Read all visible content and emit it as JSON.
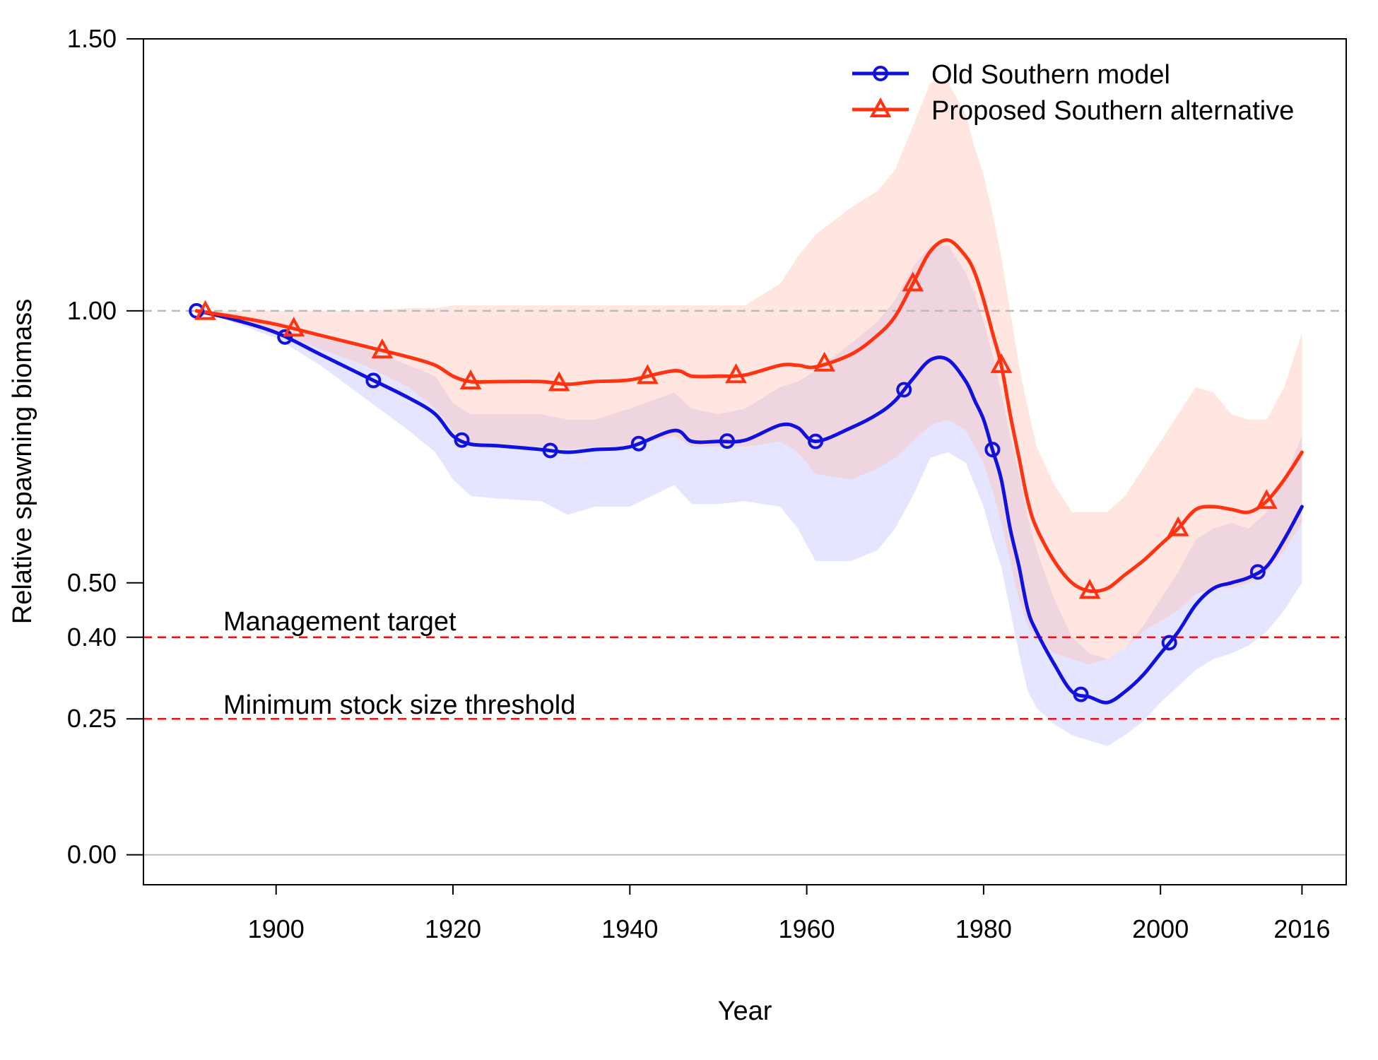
{
  "chart_data": {
    "type": "line",
    "title": "",
    "xlabel": "Year",
    "ylabel": "Relative spawning biomass",
    "xlim": [
      1885,
      2021
    ],
    "ylim": [
      -0.055,
      1.5
    ],
    "x_ticks": [
      1900,
      1920,
      1940,
      1960,
      1980,
      2000,
      2016
    ],
    "y_ticks": [
      {
        "value": 0.0,
        "label": "0.00"
      },
      {
        "value": 0.25,
        "label": "0.25"
      },
      {
        "value": 0.4,
        "label": "0.40"
      },
      {
        "value": 0.5,
        "label": "0.50"
      },
      {
        "value": 1.0,
        "label": "1.00"
      },
      {
        "value": 1.5,
        "label": "1.50"
      }
    ],
    "reference_lines": [
      {
        "name": "unfished",
        "value": 1.0,
        "color": "#bbbbbb",
        "style": "dashed",
        "label": ""
      },
      {
        "name": "zero",
        "value": 0.0,
        "color": "#bbbbbb",
        "style": "solid",
        "label": ""
      },
      {
        "name": "management-target",
        "value": 0.4,
        "color": "#ee1111",
        "style": "dashed",
        "label": "Management target"
      },
      {
        "name": "minimum-stock-size-threshold",
        "value": 0.25,
        "color": "#ee1111",
        "style": "dashed",
        "label": "Minimum stock size threshold"
      }
    ],
    "legend_position": "top-right",
    "series": [
      {
        "name": "Old Southern model",
        "color": "#1111dd",
        "marker": "circle",
        "interval_color": "#8a8aff",
        "x": [
          1891,
          1895,
          1900,
          1905,
          1910,
          1915,
          1918,
          1920,
          1922,
          1925,
          1930,
          1933,
          1936,
          1940,
          1945,
          1947,
          1950,
          1953,
          1957,
          1959,
          1961,
          1965,
          1968,
          1970,
          1972,
          1974,
          1976,
          1978,
          1979,
          1980,
          1981,
          1982,
          1983,
          1984,
          1985,
          1986,
          1988,
          1990,
          1992,
          1994,
          1996,
          1998,
          2000,
          2002,
          2004,
          2006,
          2008,
          2010,
          2012,
          2014,
          2016
        ],
        "y": [
          1.0,
          0.985,
          0.96,
          0.92,
          0.88,
          0.84,
          0.81,
          0.77,
          0.755,
          0.752,
          0.745,
          0.74,
          0.745,
          0.75,
          0.78,
          0.76,
          0.76,
          0.762,
          0.79,
          0.785,
          0.76,
          0.785,
          0.81,
          0.835,
          0.875,
          0.91,
          0.91,
          0.87,
          0.835,
          0.8,
          0.745,
          0.69,
          0.6,
          0.53,
          0.45,
          0.41,
          0.35,
          0.3,
          0.29,
          0.28,
          0.3,
          0.33,
          0.37,
          0.41,
          0.46,
          0.49,
          0.5,
          0.51,
          0.53,
          0.58,
          0.64
        ],
        "upper": [
          1.0,
          0.99,
          0.97,
          0.95,
          0.93,
          0.9,
          0.88,
          0.83,
          0.81,
          0.81,
          0.81,
          0.8,
          0.8,
          0.82,
          0.85,
          0.82,
          0.81,
          0.82,
          0.86,
          0.87,
          0.89,
          0.94,
          0.98,
          1.02,
          1.08,
          1.12,
          1.12,
          1.07,
          1.03,
          0.98,
          0.92,
          0.85,
          0.77,
          0.7,
          0.62,
          0.56,
          0.47,
          0.4,
          0.37,
          0.36,
          0.38,
          0.42,
          0.47,
          0.52,
          0.58,
          0.6,
          0.61,
          0.6,
          0.63,
          0.69,
          0.77
        ],
        "lower": [
          1.0,
          0.98,
          0.95,
          0.9,
          0.84,
          0.78,
          0.74,
          0.69,
          0.66,
          0.655,
          0.65,
          0.625,
          0.64,
          0.64,
          0.68,
          0.645,
          0.645,
          0.65,
          0.64,
          0.6,
          0.54,
          0.54,
          0.56,
          0.6,
          0.66,
          0.73,
          0.74,
          0.72,
          0.68,
          0.64,
          0.58,
          0.53,
          0.45,
          0.37,
          0.3,
          0.27,
          0.24,
          0.22,
          0.21,
          0.2,
          0.22,
          0.245,
          0.28,
          0.31,
          0.34,
          0.36,
          0.37,
          0.385,
          0.41,
          0.45,
          0.5
        ],
        "marker_x": [
          1891,
          1901,
          1911,
          1921,
          1931,
          1941,
          1951,
          1961,
          1971,
          1981,
          1991,
          2001,
          2011
        ]
      },
      {
        "name": "Proposed Southern alternative",
        "color": "#ff3311",
        "marker": "triangle",
        "interval_color": "#ffb8a6",
        "x": [
          1891,
          1895,
          1900,
          1905,
          1910,
          1915,
          1918,
          1920,
          1922,
          1925,
          1930,
          1933,
          1936,
          1940,
          1945,
          1947,
          1950,
          1953,
          1957,
          1959,
          1961,
          1965,
          1968,
          1970,
          1972,
          1974,
          1976,
          1978,
          1979,
          1980,
          1981,
          1982,
          1983,
          1984,
          1985,
          1986,
          1988,
          1990,
          1992,
          1994,
          1996,
          1998,
          2000,
          2002,
          2004,
          2006,
          2008,
          2010,
          2012,
          2014,
          2016
        ],
        "y": [
          1.0,
          0.99,
          0.975,
          0.955,
          0.935,
          0.915,
          0.9,
          0.88,
          0.87,
          0.87,
          0.87,
          0.865,
          0.87,
          0.873,
          0.89,
          0.88,
          0.88,
          0.882,
          0.9,
          0.9,
          0.897,
          0.92,
          0.955,
          0.99,
          1.05,
          1.11,
          1.13,
          1.1,
          1.07,
          1.02,
          0.96,
          0.9,
          0.81,
          0.73,
          0.65,
          0.6,
          0.54,
          0.5,
          0.485,
          0.49,
          0.515,
          0.54,
          0.57,
          0.6,
          0.635,
          0.64,
          0.635,
          0.63,
          0.65,
          0.69,
          0.74
        ],
        "upper": [
          1.0,
          1.0,
          1.0,
          1.0,
          1.0,
          1.005,
          1.005,
          1.01,
          1.01,
          1.01,
          1.01,
          1.01,
          1.01,
          1.01,
          1.01,
          1.01,
          1.01,
          1.01,
          1.05,
          1.1,
          1.14,
          1.19,
          1.22,
          1.26,
          1.34,
          1.42,
          1.42,
          1.36,
          1.3,
          1.25,
          1.18,
          1.1,
          1.0,
          0.9,
          0.82,
          0.75,
          0.68,
          0.63,
          0.63,
          0.63,
          0.66,
          0.71,
          0.76,
          0.81,
          0.86,
          0.85,
          0.81,
          0.8,
          0.8,
          0.86,
          0.96
        ],
        "lower": [
          1.0,
          0.98,
          0.96,
          0.93,
          0.9,
          0.86,
          0.82,
          0.78,
          0.75,
          0.75,
          0.75,
          0.745,
          0.75,
          0.75,
          0.77,
          0.75,
          0.75,
          0.75,
          0.76,
          0.74,
          0.7,
          0.69,
          0.71,
          0.73,
          0.76,
          0.79,
          0.8,
          0.78,
          0.75,
          0.72,
          0.67,
          0.61,
          0.54,
          0.47,
          0.42,
          0.4,
          0.37,
          0.36,
          0.35,
          0.36,
          0.38,
          0.41,
          0.43,
          0.45,
          0.48,
          0.49,
          0.49,
          0.5,
          0.52,
          0.56,
          0.61
        ],
        "marker_x": [
          1892,
          1902,
          1912,
          1922,
          1932,
          1942,
          1952,
          1962,
          1972,
          1982,
          1992,
          2002,
          2012
        ]
      }
    ]
  }
}
